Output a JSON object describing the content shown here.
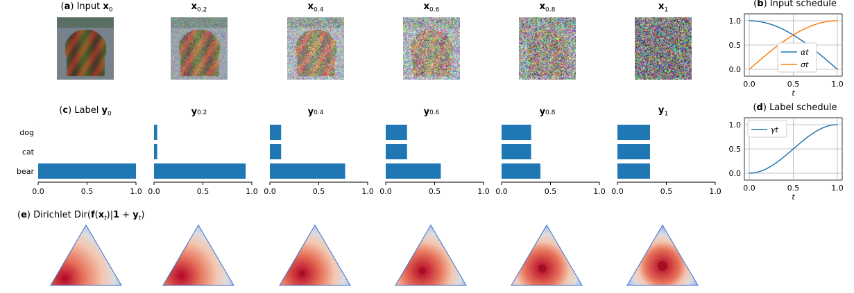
{
  "figure": {
    "input_titles": [
      {
        "prefix": "(",
        "letter": "a",
        "rest": ") Input ",
        "sym": "x",
        "sub": "0"
      },
      {
        "sym": "x",
        "sub": "0.2"
      },
      {
        "sym": "x",
        "sub": "0.4"
      },
      {
        "sym": "x",
        "sub": "0.6"
      },
      {
        "sym": "x",
        "sub": "0.8"
      },
      {
        "sym": "x",
        "sub": "1"
      }
    ],
    "label_titles": [
      {
        "prefix": "(",
        "letter": "c",
        "rest": ") Label ",
        "sym": "y",
        "sub": "0"
      },
      {
        "sym": "y",
        "sub": "0.2"
      },
      {
        "sym": "y",
        "sub": "0.4"
      },
      {
        "sym": "y",
        "sub": "0.6"
      },
      {
        "sym": "y",
        "sub": "0.8"
      },
      {
        "sym": "y",
        "sub": "1"
      }
    ],
    "dirichlet_title": {
      "letter": "e",
      "rest1": ") Dirichlet Dir(",
      "f": "f",
      "x": "x",
      "t": "t",
      "bar": ")|",
      "one": "1",
      "plus": " + ",
      "y": "y",
      "close": ")"
    },
    "noise_levels": [
      0,
      0.2,
      0.4,
      0.6,
      0.8,
      1
    ]
  },
  "chart_data": [
    {
      "type": "bar",
      "orientation": "horizontal",
      "categories": [
        "bear",
        "cat",
        "dog"
      ],
      "xlim": [
        0,
        1
      ],
      "xticks": [
        "0.0",
        "0.5",
        "1.0"
      ],
      "panels": [
        {
          "title": "y0",
          "values": [
            1.0,
            0.0,
            0.0
          ]
        },
        {
          "title": "y0.2",
          "values": [
            0.937,
            0.032,
            0.032
          ]
        },
        {
          "title": "y0.4",
          "values": [
            0.77,
            0.115,
            0.115
          ]
        },
        {
          "title": "y0.6",
          "values": [
            0.563,
            0.218,
            0.218
          ]
        },
        {
          "title": "y0.8",
          "values": [
            0.397,
            0.302,
            0.302
          ]
        },
        {
          "title": "y1",
          "values": [
            0.333,
            0.333,
            0.333
          ]
        }
      ],
      "color": "#1f77b4"
    },
    {
      "type": "line",
      "title": "Input schedule",
      "letter": "b",
      "xlabel": "t",
      "xlim": [
        0,
        1
      ],
      "ylim": [
        0,
        1
      ],
      "xticks": [
        "0.0",
        "0.5",
        "1.0"
      ],
      "yticks": [
        "0.0",
        "0.5",
        "1.0"
      ],
      "grid": true,
      "legend": "center-right",
      "series": [
        {
          "name": "αt",
          "fn": "cos",
          "color": "#1f77b4"
        },
        {
          "name": "σt",
          "fn": "sin",
          "color": "#ff7f0e"
        }
      ]
    },
    {
      "type": "line",
      "title": "Label schedule",
      "letter": "d",
      "xlabel": "t",
      "xlim": [
        0,
        1
      ],
      "ylim": [
        0,
        1
      ],
      "xticks": [
        "0.0",
        "0.5",
        "1.0"
      ],
      "yticks": [
        "0.0",
        "0.5",
        "1.0"
      ],
      "grid": true,
      "legend": "top-left",
      "series": [
        {
          "name": "γt",
          "fn": "smooth",
          "color": "#1f77b4"
        }
      ]
    }
  ]
}
